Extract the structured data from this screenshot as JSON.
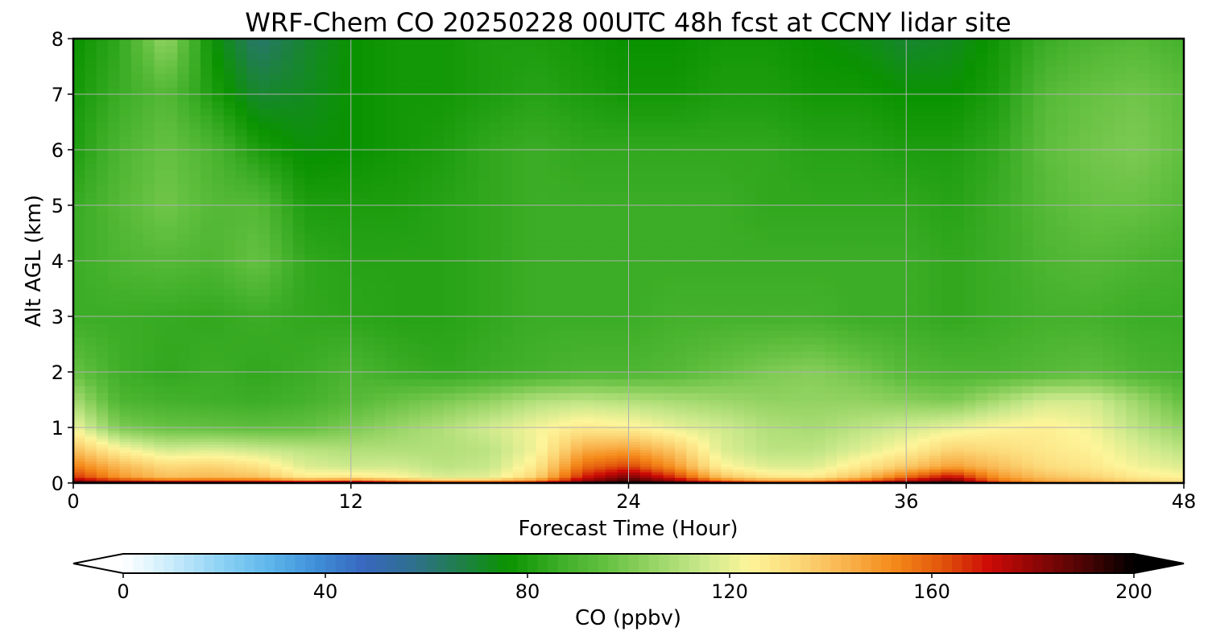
{
  "chart_data": {
    "type": "heatmap",
    "title": "WRF-Chem CO  20250228 00UTC 48h fcst at CCNY lidar site",
    "xlabel": "Forecast Time (Hour)",
    "ylabel": "Alt AGL (km)",
    "xlim": [
      0,
      48
    ],
    "ylim": [
      0,
      8
    ],
    "x_ticks": [
      "0",
      "12",
      "24",
      "36",
      "48"
    ],
    "y_ticks": [
      "0",
      "1",
      "2",
      "3",
      "4",
      "5",
      "6",
      "7",
      "8"
    ],
    "grid": true,
    "colorbar": {
      "label": "CO  (ppbv)",
      "range": [
        0,
        200
      ],
      "ticks": [
        "0",
        "40",
        "80",
        "120",
        "160",
        "200"
      ],
      "extend": "both",
      "colors": [
        "#ffffff",
        "#c9ecfb",
        "#8fd3f5",
        "#5fb8ec",
        "#3f8fd8",
        "#3867bf",
        "#2f6f8f",
        "#1f7f4a",
        "#0a9300",
        "#3aac25",
        "#63c040",
        "#96d465",
        "#c8e88a",
        "#fdf59a",
        "#fcd878",
        "#f9b44e",
        "#f58a1a",
        "#e2560c",
        "#cc0a06",
        "#8b0606",
        "#4a0404",
        "#000000"
      ]
    },
    "x": [
      0,
      2,
      4,
      6,
      8,
      10,
      12,
      14,
      16,
      18,
      20,
      22,
      24,
      26,
      28,
      30,
      32,
      34,
      36,
      38,
      40,
      42,
      44,
      46,
      48
    ],
    "y": [
      0,
      0.1,
      0.3,
      0.6,
      1,
      1.5,
      2,
      3,
      4,
      5,
      6,
      7,
      8
    ],
    "values": [
      [
        195,
        190,
        188,
        188,
        186,
        183,
        188,
        176,
        170,
        170,
        172,
        190,
        200,
        192,
        176,
        168,
        170,
        178,
        190,
        196,
        165,
        152,
        148,
        140,
        135
      ],
      [
        168,
        150,
        140,
        142,
        140,
        128,
        130,
        125,
        118,
        120,
        135,
        170,
        185,
        168,
        140,
        130,
        128,
        140,
        160,
        175,
        150,
        140,
        135,
        128,
        125
      ],
      [
        155,
        142,
        133,
        135,
        130,
        118,
        115,
        116,
        112,
        114,
        128,
        158,
        165,
        150,
        125,
        118,
        118,
        128,
        138,
        148,
        140,
        132,
        128,
        122,
        118
      ],
      [
        140,
        125,
        116,
        118,
        115,
        112,
        110,
        110,
        110,
        112,
        122,
        145,
        148,
        138,
        118,
        112,
        112,
        118,
        125,
        135,
        132,
        128,
        125,
        118,
        112
      ],
      [
        122,
        100,
        96,
        95,
        94,
        95,
        100,
        105,
        110,
        116,
        122,
        128,
        126,
        120,
        116,
        110,
        108,
        112,
        116,
        120,
        124,
        126,
        122,
        112,
        104
      ],
      [
        108,
        90,
        88,
        87,
        86,
        88,
        92,
        96,
        100,
        104,
        110,
        112,
        110,
        108,
        106,
        104,
        104,
        104,
        102,
        100,
        108,
        116,
        116,
        106,
        95
      ],
      [
        96,
        87,
        84,
        86,
        84,
        86,
        90,
        86,
        84,
        86,
        88,
        90,
        90,
        92,
        96,
        100,
        102,
        98,
        92,
        90,
        90,
        92,
        94,
        90,
        88
      ],
      [
        86,
        86,
        85,
        84,
        86,
        84,
        83,
        82,
        82,
        84,
        86,
        86,
        86,
        88,
        88,
        88,
        88,
        86,
        86,
        84,
        86,
        88,
        88,
        86,
        86
      ],
      [
        86,
        90,
        92,
        90,
        96,
        84,
        82,
        82,
        82,
        84,
        86,
        86,
        86,
        86,
        86,
        86,
        86,
        86,
        86,
        84,
        86,
        90,
        92,
        90,
        88
      ],
      [
        85,
        92,
        98,
        92,
        92,
        80,
        80,
        80,
        82,
        84,
        86,
        86,
        86,
        86,
        86,
        84,
        84,
        84,
        84,
        82,
        86,
        92,
        96,
        96,
        92
      ],
      [
        80,
        90,
        96,
        90,
        80,
        75,
        76,
        78,
        80,
        84,
        86,
        84,
        84,
        84,
        84,
        84,
        82,
        82,
        80,
        80,
        84,
        94,
        98,
        100,
        95
      ],
      [
        78,
        86,
        92,
        80,
        70,
        72,
        76,
        78,
        78,
        80,
        82,
        80,
        78,
        78,
        80,
        80,
        78,
        78,
        76,
        76,
        80,
        92,
        96,
        98,
        94
      ],
      [
        76,
        84,
        105,
        76,
        62,
        70,
        76,
        78,
        78,
        80,
        80,
        78,
        76,
        76,
        78,
        78,
        76,
        74,
        70,
        72,
        78,
        86,
        90,
        92,
        88
      ]
    ]
  }
}
